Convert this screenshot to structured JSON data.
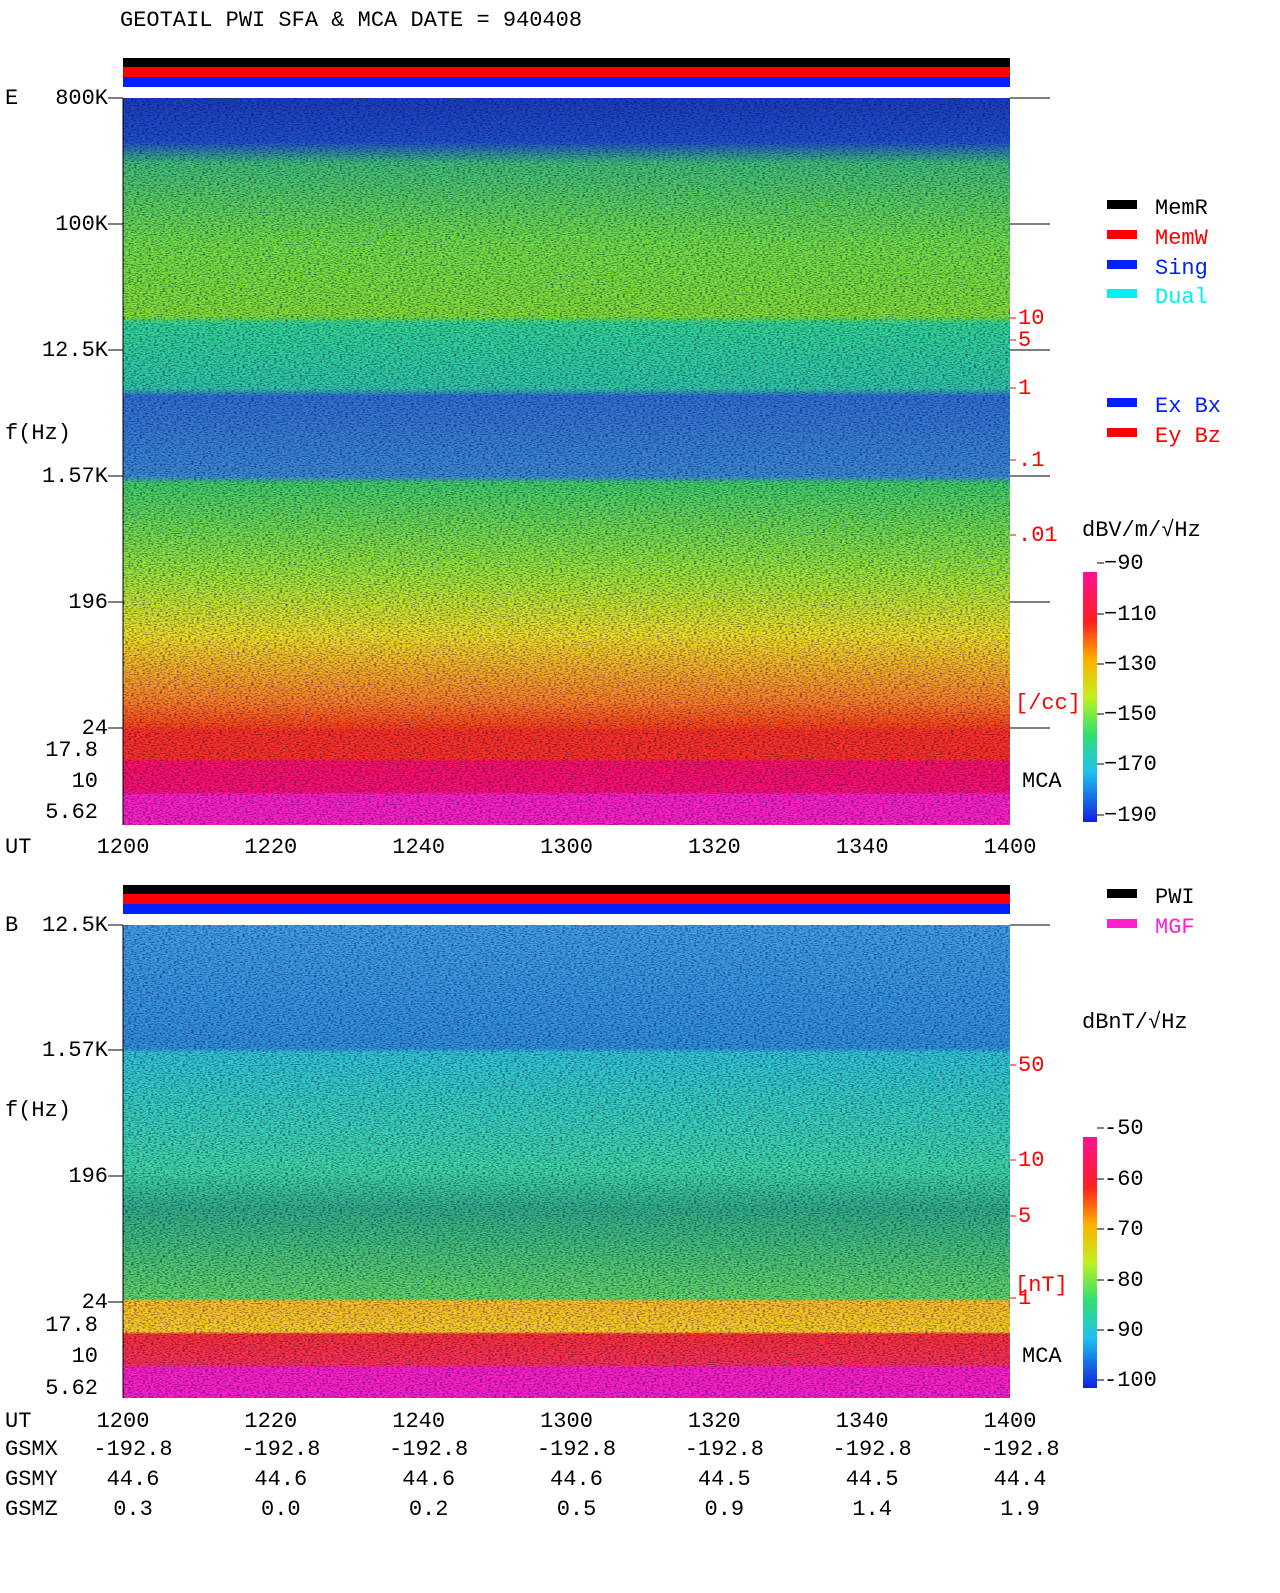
{
  "header": {
    "title": "GEOTAIL  PWI SFA & MCA   DATE = 940408"
  },
  "panels": [
    {
      "label": "E",
      "ylabel": "f(Hz)",
      "yticks": [
        "800K",
        "100K",
        "12.5K",
        "1.57K",
        "196",
        "24",
        "17.8",
        "10",
        "5.62"
      ],
      "density_ticks": [
        "10",
        "5",
        "1",
        ".1",
        ".01"
      ],
      "density_unit": "[/cc]",
      "mca": "MCA",
      "time_label": "UT",
      "time_ticks": [
        "1200",
        "1220",
        "1240",
        "1300",
        "1320",
        "1340",
        "1400"
      ],
      "legend": [
        "MemR",
        "MemW",
        "Sing",
        "Dual",
        "Ex Bx",
        "Ey Bz"
      ],
      "colorbar": {
        "title": "dBV/m/√Hz",
        "ticks": [
          "−90",
          "−110",
          "−130",
          "−150",
          "−170",
          "−190"
        ]
      }
    },
    {
      "label": "B",
      "ylabel": "f(Hz)",
      "yticks": [
        "12.5K",
        "1.57K",
        "196",
        "24",
        "17.8",
        "10",
        "5.62"
      ],
      "density_ticks": [
        "50",
        "10",
        "5",
        "1"
      ],
      "density_unit": "[nT]",
      "mca": "MCA",
      "time_label": "UT",
      "time_ticks": [
        "1200",
        "1220",
        "1240",
        "1300",
        "1320",
        "1340",
        "1400"
      ],
      "legend": [
        "PWI",
        "MGF"
      ],
      "colorbar": {
        "title": "dBnT/√Hz",
        "ticks": [
          "-50",
          "-60",
          "-70",
          "-80",
          "-90",
          "-100"
        ]
      }
    }
  ],
  "orbit": {
    "rows": [
      {
        "label": "GSMX",
        "values": [
          "-192.8",
          "-192.8",
          "-192.8",
          "-192.8",
          "-192.8",
          "-192.8",
          "-192.8"
        ]
      },
      {
        "label": "GSMY",
        "values": [
          "44.6",
          "44.6",
          "44.6",
          "44.6",
          "44.5",
          "44.5",
          "44.4"
        ]
      },
      {
        "label": "GSMZ",
        "values": [
          "0.3",
          "0.0",
          "0.2",
          "0.5",
          "0.9",
          "1.4",
          "1.9"
        ]
      }
    ]
  }
}
